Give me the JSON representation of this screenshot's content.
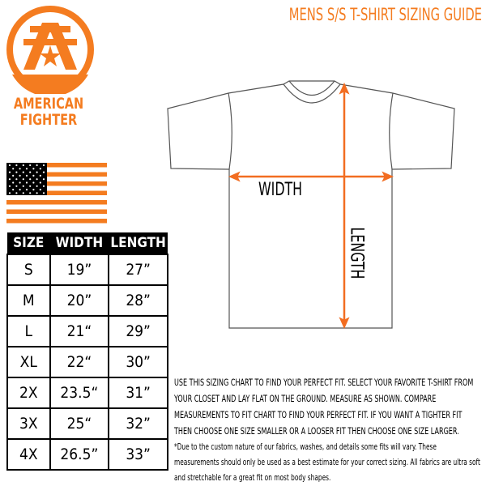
{
  "header": {
    "title": "MENS S/S T-SHIRT SIZING GUIDE"
  },
  "brand": {
    "name_line1": "AMERICAN",
    "name_line2": "FIGHTER",
    "color": "#f47c20"
  },
  "diagram": {
    "width_label": "WIDTH",
    "length_label": "LENGTH",
    "arrow_color": "#f26d21"
  },
  "size_table": {
    "headers": [
      "SIZE",
      "WIDTH",
      "LENGTH"
    ],
    "rows": [
      [
        "S",
        "19”",
        "27”"
      ],
      [
        "M",
        "20”",
        "28”"
      ],
      [
        "L",
        "21“",
        "29”"
      ],
      [
        "XL",
        "22“",
        "30”"
      ],
      [
        "2X",
        "23.5“",
        "31”"
      ],
      [
        "3X",
        "25“",
        "32”"
      ],
      [
        "4X",
        "26.5”",
        "33”"
      ]
    ]
  },
  "instructions": "USE THIS SIZING CHART TO FIND YOUR PERFECT FIT. SELECT YOUR FAVORITE T-SHIRT FROM YOUR CLOSET AND LAY FLAT ON THE GROUND. MEASURE AS SHOWN. COMPARE MEASUREMENTS TO FIT CHART TO FIND YOUR PERFECT FIT. IF YOU WANT A TIGHTER FIT THEN CHOOSE ONE SIZE SMALLER OR A LOOSER FIT THEN CHOOSE ONE SIZE LARGER.",
  "disclaimer": "*Due to the custom nature of our fabrics, washes, and details some fits will vary. These measurements should only be used as a best estimate for your correct sizing. All fabrics are ultra soft and stretchable for a great fit on most body shapes."
}
